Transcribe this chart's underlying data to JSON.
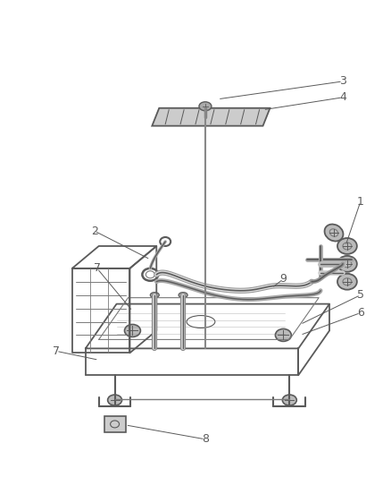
{
  "bg_color": "#ffffff",
  "lc": "#5a5a5a",
  "lc2": "#7a7a7a",
  "fig_width": 4.38,
  "fig_height": 5.33,
  "dpi": 100
}
